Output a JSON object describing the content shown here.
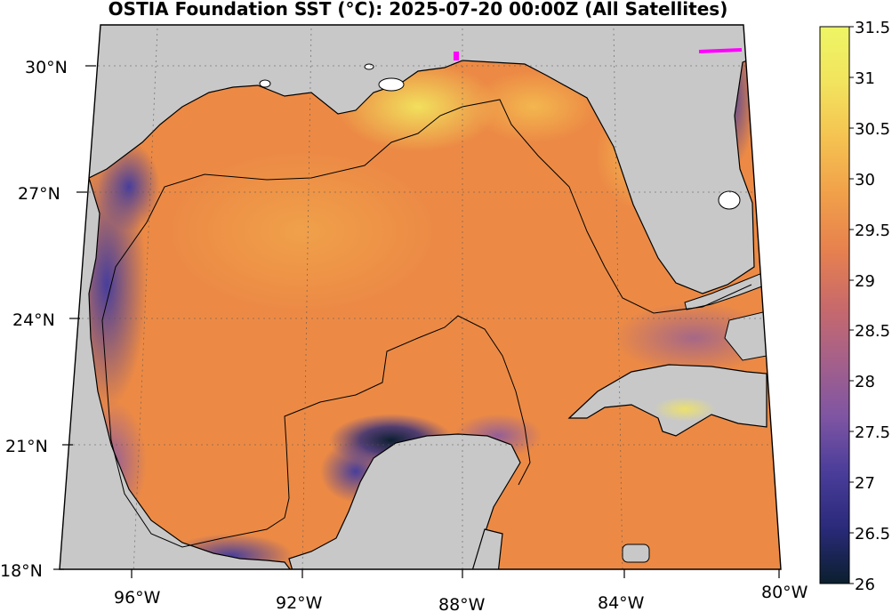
{
  "title": "OSTIA Foundation SST (°C): 2025-07-20 00:00Z (All Satellites)",
  "map": {
    "latitude_labels": [
      "30°N",
      "27°N",
      "24°N",
      "21°N",
      "18°N"
    ],
    "longitude_labels": [
      "96°W",
      "92°W",
      "88°W",
      "84°W",
      "80°W"
    ],
    "land_color": "#c8c8c8",
    "eez_boundary": "thin black line",
    "highlight_segment_color": "#ff00ff"
  },
  "colorbar": {
    "ticks": [
      "31.5",
      "31",
      "30.5",
      "30",
      "29.5",
      "29",
      "28.5",
      "28",
      "27.5",
      "27",
      "26.5",
      "26"
    ],
    "range": [
      26,
      31.5
    ],
    "colormap": "thermal",
    "stops": [
      "#0b1f2e",
      "#2a2a7a",
      "#4a3d9a",
      "#7f55a3",
      "#a5608a",
      "#c96a6a",
      "#e7814e",
      "#f1a04a",
      "#f5c251",
      "#f2e45e",
      "#eef565"
    ]
  }
}
